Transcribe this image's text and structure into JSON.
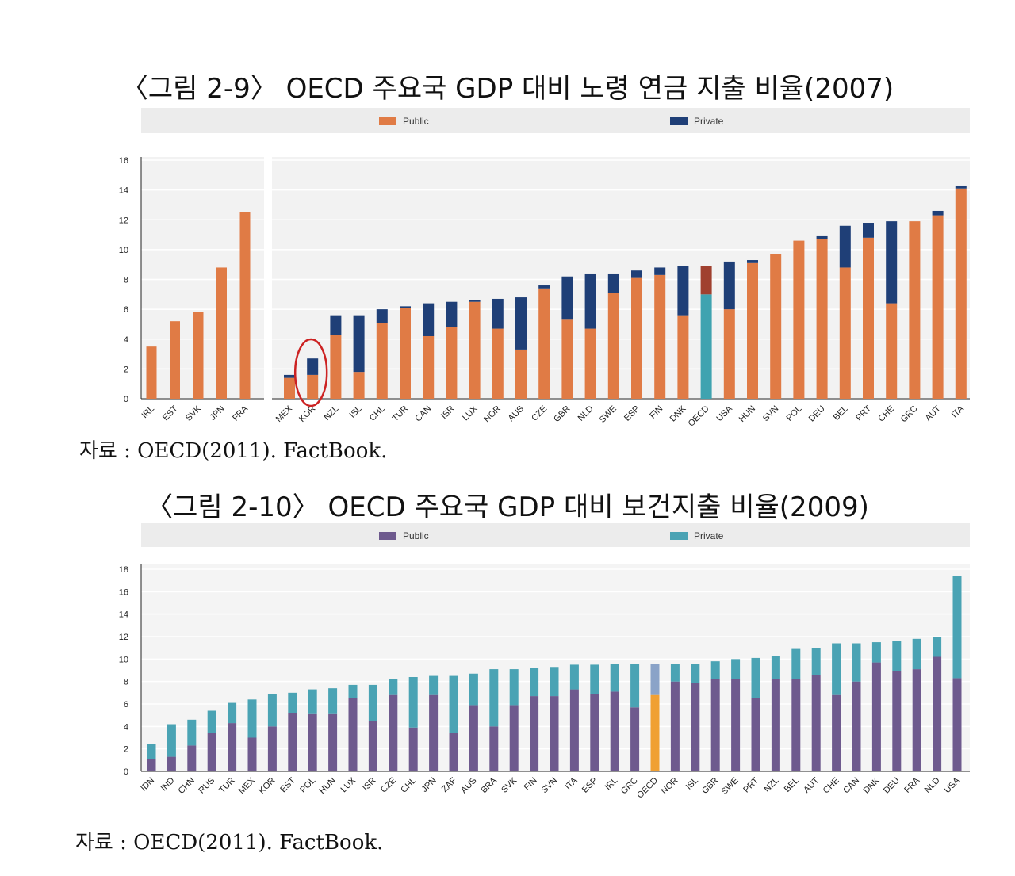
{
  "figure1": {
    "title": "〈그림 2-9〉 OECD 주요국 GDP 대비 노령 연금 지출 비율(2007)",
    "source": "자료 : OECD(2011). FactBook."
  },
  "figure2": {
    "title": "〈그림 2-10〉 OECD 주요국 GDP 대비 보건지출 비율(2009)",
    "source": "자료 : OECD(2011). FactBook."
  },
  "colors": {
    "fig1_public": "#e07b45",
    "fig1_private": "#1f3f77",
    "fig1_oecd_public": "#3fa3b0",
    "fig1_oecd_private": "#a0402f",
    "fig2_public": "#6e5a8e",
    "fig2_private": "#4aa3b4",
    "fig2_oecd_public": "#f0a033",
    "fig2_oecd_private": "#8aa3c8",
    "highlight_circle": "#cc2222"
  },
  "chart_data": [
    {
      "type": "bar",
      "stacked": true,
      "legend": [
        "Public",
        "Private"
      ],
      "legend_placement": "top",
      "ylim": [
        0,
        16
      ],
      "yticks": [
        0,
        2,
        4,
        6,
        8,
        10,
        12,
        14,
        16
      ],
      "panels": [
        {
          "categories": [
            "IRL",
            "EST",
            "SVK",
            "JPN",
            "FRA"
          ],
          "series": [
            {
              "name": "Public",
              "values": [
                3.5,
                5.2,
                5.8,
                8.8,
                12.5
              ]
            },
            {
              "name": "Private",
              "values": [
                0,
                0,
                0,
                0,
                0
              ]
            }
          ]
        },
        {
          "categories": [
            "MEX",
            "KOR",
            "NZL",
            "ISL",
            "CHL",
            "TUR",
            "CAN",
            "ISR",
            "LUX",
            "NOR",
            "AUS",
            "CZE",
            "GBR",
            "NLD",
            "SWE",
            "ESP",
            "FIN",
            "DNK",
            "OECD",
            "USA",
            "HUN",
            "SVN",
            "POL",
            "DEU",
            "BEL",
            "PRT",
            "CHE",
            "GRC",
            "AUT",
            "ITA"
          ],
          "series": [
            {
              "name": "Public",
              "values": [
                1.4,
                1.6,
                4.3,
                1.8,
                5.1,
                6.1,
                4.2,
                4.8,
                6.5,
                4.7,
                3.3,
                7.4,
                5.3,
                4.7,
                7.1,
                8.1,
                8.3,
                5.6,
                7.0,
                6.0,
                9.1,
                9.7,
                10.6,
                10.7,
                8.8,
                10.8,
                6.4,
                11.9,
                12.3,
                14.1
              ]
            },
            {
              "name": "Private",
              "values": [
                0.2,
                1.1,
                1.3,
                3.8,
                0.9,
                0.1,
                2.2,
                1.7,
                0.1,
                2.0,
                3.5,
                0.2,
                2.9,
                3.7,
                1.3,
                0.5,
                0.5,
                3.3,
                1.9,
                3.2,
                0.2,
                0.0,
                0.0,
                0.2,
                2.8,
                1.0,
                5.5,
                0.0,
                0.3,
                0.2
              ]
            }
          ]
        }
      ]
    },
    {
      "type": "bar",
      "stacked": true,
      "legend": [
        "Public",
        "Private"
      ],
      "legend_placement": "top",
      "ylim": [
        0,
        18
      ],
      "yticks": [
        0,
        2,
        4,
        6,
        8,
        10,
        12,
        14,
        16,
        18
      ],
      "categories": [
        "IDN",
        "IND",
        "CHN",
        "RUS",
        "TUR",
        "MEX",
        "KOR",
        "EST",
        "POL",
        "HUN",
        "LUX",
        "ISR",
        "CZE",
        "CHL",
        "JPN",
        "ZAF",
        "AUS",
        "BRA",
        "SVK",
        "FIN",
        "SVN",
        "ITA",
        "ESP",
        "IRL",
        "GRC",
        "OECD",
        "NOR",
        "ISL",
        "GBR",
        "SWE",
        "PRT",
        "NZL",
        "BEL",
        "AUT",
        "CHE",
        "CAN",
        "DNK",
        "DEU",
        "FRA",
        "NLD",
        "USA"
      ],
      "series": [
        {
          "name": "Public",
          "values": [
            1.1,
            1.3,
            2.3,
            3.4,
            4.3,
            3.0,
            4.0,
            5.2,
            5.1,
            5.1,
            6.5,
            4.5,
            6.8,
            3.9,
            6.8,
            3.4,
            5.9,
            4.0,
            5.9,
            6.7,
            6.7,
            7.3,
            6.9,
            7.1,
            5.7,
            6.8,
            8.0,
            7.9,
            8.2,
            8.2,
            6.5,
            8.2,
            8.2,
            8.6,
            6.8,
            8.0,
            9.7,
            8.9,
            9.1,
            10.2,
            8.3
          ]
        },
        {
          "name": "Private",
          "values": [
            1.3,
            2.9,
            2.3,
            2.0,
            1.8,
            3.4,
            2.9,
            1.8,
            2.2,
            2.3,
            1.2,
            3.2,
            1.4,
            4.5,
            1.7,
            5.1,
            2.8,
            5.1,
            3.2,
            2.5,
            2.6,
            2.2,
            2.6,
            2.5,
            3.9,
            2.8,
            1.6,
            1.7,
            1.6,
            1.8,
            3.6,
            2.1,
            2.7,
            2.4,
            4.6,
            3.4,
            1.8,
            2.7,
            2.7,
            1.8,
            9.1
          ]
        }
      ]
    }
  ]
}
